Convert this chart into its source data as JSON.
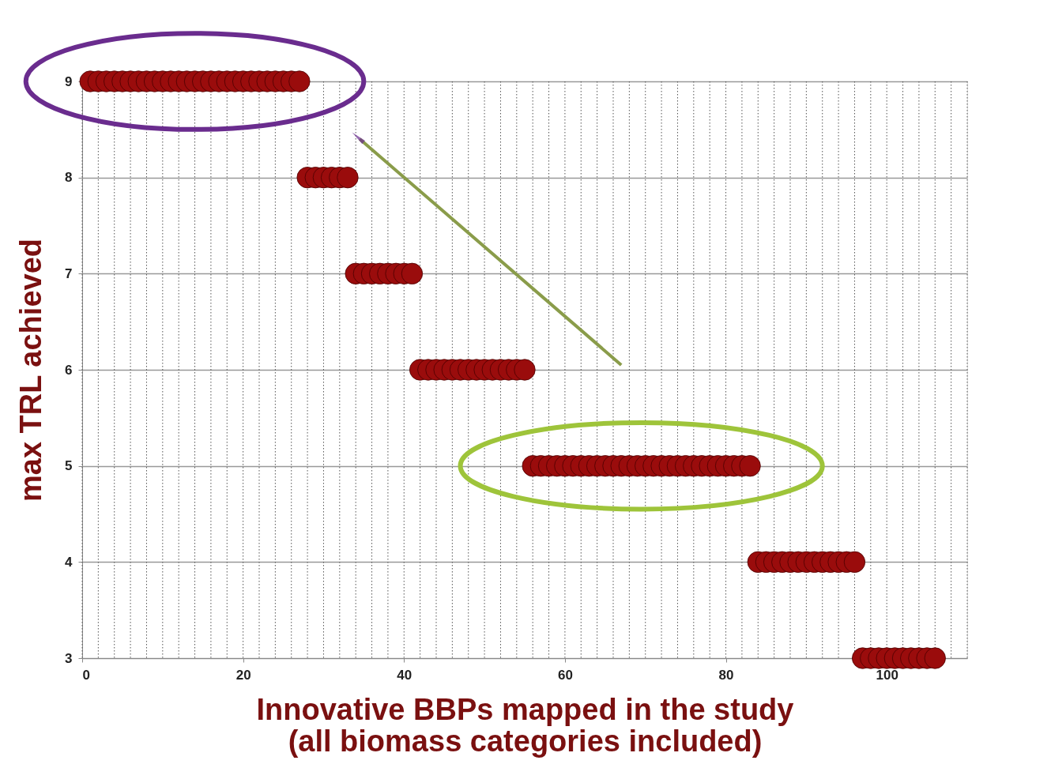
{
  "chart_data": {
    "type": "scatter",
    "xlabel": "Innovative BBPs mapped in the study\n(all biomass categories included)",
    "ylabel": "max TRL achieved",
    "x": [
      1,
      2,
      3,
      4,
      5,
      6,
      7,
      8,
      9,
      10,
      11,
      12,
      13,
      14,
      15,
      16,
      17,
      18,
      19,
      20,
      21,
      22,
      23,
      24,
      25,
      26,
      27,
      28,
      29,
      30,
      31,
      32,
      33,
      34,
      35,
      36,
      37,
      38,
      39,
      40,
      41,
      42,
      43,
      44,
      45,
      46,
      47,
      48,
      49,
      50,
      51,
      52,
      53,
      54,
      55,
      56,
      57,
      58,
      59,
      60,
      61,
      62,
      63,
      64,
      65,
      66,
      67,
      68,
      69,
      70,
      71,
      72,
      73,
      74,
      75,
      76,
      77,
      78,
      79,
      80,
      81,
      82,
      83,
      84,
      85,
      86,
      87,
      88,
      89,
      90,
      91,
      92,
      93,
      94,
      95,
      96,
      97,
      98,
      99,
      100,
      101,
      102,
      103,
      104,
      105,
      106
    ],
    "series": [
      {
        "color": "#9a0c0c",
        "values": [
          9,
          9,
          9,
          9,
          9,
          9,
          9,
          9,
          9,
          9,
          9,
          9,
          9,
          9,
          9,
          9,
          9,
          9,
          9,
          9,
          9,
          9,
          9,
          9,
          9,
          9,
          9,
          8,
          8,
          8,
          8,
          8,
          8,
          7,
          7,
          7,
          7,
          7,
          7,
          7,
          7,
          6,
          6,
          6,
          6,
          6,
          6,
          6,
          6,
          6,
          6,
          6,
          6,
          6,
          6,
          5,
          5,
          5,
          5,
          5,
          5,
          5,
          5,
          5,
          5,
          5,
          5,
          5,
          5,
          5,
          5,
          5,
          5,
          5,
          5,
          5,
          5,
          5,
          5,
          5,
          5,
          5,
          5,
          4,
          4,
          4,
          4,
          4,
          4,
          4,
          4,
          4,
          4,
          4,
          4,
          4,
          3,
          3,
          3,
          3,
          3,
          3,
          3,
          3,
          3,
          3
        ]
      }
    ],
    "xlim": [
      0,
      110
    ],
    "xticks": [
      0,
      20,
      40,
      60,
      80,
      100
    ],
    "ylim": [
      3,
      9
    ],
    "yticks": [
      3,
      4,
      5,
      6,
      7,
      8,
      9
    ],
    "grid": true,
    "marker": "circle"
  }
}
